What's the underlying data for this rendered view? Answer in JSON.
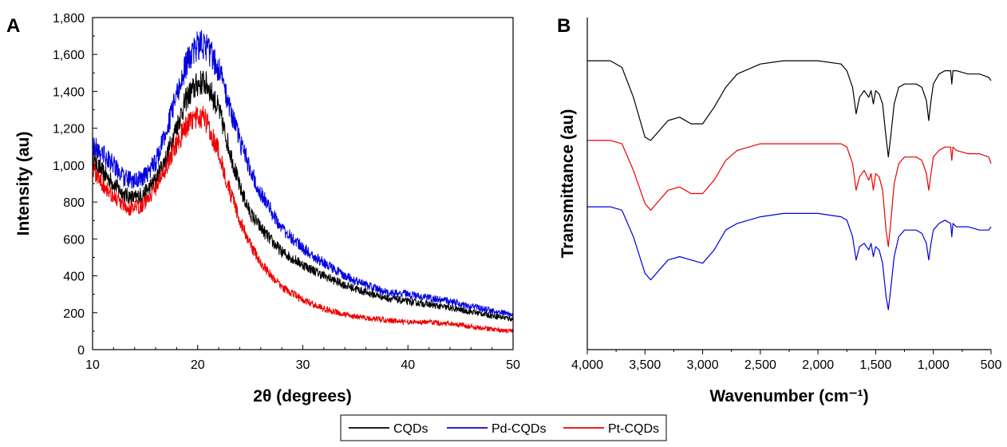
{
  "colors": {
    "CQDs": "#000000",
    "Pd-CQDs": "#0000dd",
    "Pt-CQDs": "#ee0000"
  },
  "legend": {
    "placement": "bottom-center",
    "entries": [
      "CQDs",
      "Pd-CQDs",
      "Pt-CQDs"
    ]
  },
  "chart_data": [
    {
      "panel_label": "A",
      "type": "line",
      "title": "",
      "xlabel": "2θ (degrees)",
      "ylabel": "Intensity (au)",
      "xlim": [
        10,
        50
      ],
      "ylim": [
        0,
        1800
      ],
      "x_ticks": [
        10,
        20,
        30,
        40,
        50
      ],
      "x_tick_labels": [
        "10",
        "20",
        "30",
        "40",
        "50"
      ],
      "y_ticks": [
        0,
        200,
        400,
        600,
        800,
        1000,
        1200,
        1400,
        1600,
        1800
      ],
      "y_tick_labels": [
        "0",
        "200",
        "400",
        "600",
        "800",
        "1,000",
        "1,200",
        "1,400",
        "1,600",
        "1,800"
      ],
      "grid": false,
      "series": [
        {
          "name": "CQDs",
          "x": [
            10,
            11,
            12,
            13,
            14,
            15,
            16,
            17,
            18,
            19,
            20,
            20.5,
            21,
            22,
            23,
            24,
            25,
            26,
            27,
            28,
            30,
            32,
            34,
            36,
            38,
            40,
            42,
            44,
            46,
            48,
            50
          ],
          "y": [
            1030,
            960,
            900,
            840,
            820,
            850,
            920,
            1040,
            1210,
            1370,
            1440,
            1450,
            1430,
            1300,
            1090,
            880,
            740,
            660,
            590,
            530,
            460,
            400,
            350,
            310,
            280,
            260,
            245,
            225,
            205,
            185,
            165
          ]
        },
        {
          "name": "Pd-CQDs",
          "x": [
            10,
            11,
            12,
            13,
            14,
            15,
            16,
            17,
            18,
            19,
            20,
            20.5,
            21,
            22,
            23,
            24,
            25,
            26,
            27,
            28,
            30,
            32,
            34,
            36,
            38,
            40,
            42,
            44,
            46,
            48,
            50
          ],
          "y": [
            1110,
            1060,
            1000,
            930,
            910,
            940,
            1020,
            1180,
            1380,
            1560,
            1650,
            1660,
            1630,
            1520,
            1330,
            1130,
            980,
            850,
            750,
            660,
            550,
            470,
            400,
            350,
            310,
            300,
            280,
            260,
            235,
            210,
            190
          ]
        },
        {
          "name": "Pt-CQDs",
          "x": [
            10,
            11,
            12,
            13,
            14,
            15,
            16,
            17,
            18,
            19,
            20,
            20.5,
            21,
            22,
            23,
            24,
            25,
            26,
            27,
            28,
            30,
            32,
            34,
            36,
            38,
            40,
            42,
            44,
            46,
            48,
            50
          ],
          "y": [
            980,
            900,
            830,
            770,
            760,
            800,
            880,
            990,
            1120,
            1220,
            1260,
            1260,
            1220,
            1070,
            870,
            700,
            570,
            470,
            400,
            340,
            270,
            220,
            190,
            170,
            160,
            150,
            148,
            140,
            125,
            110,
            100
          ]
        }
      ]
    },
    {
      "panel_label": "B",
      "type": "line",
      "title": "",
      "xlabel": "Wavenumber (cm⁻¹)",
      "ylabel": "Transmittance (au)",
      "xlim": [
        4000,
        500
      ],
      "ylim": [
        0,
        100
      ],
      "x_reversed": true,
      "x_ticks": [
        4000,
        3500,
        3000,
        2500,
        2000,
        1500,
        1000,
        500
      ],
      "x_tick_labels": [
        "4,000",
        "3,500",
        "3,000",
        "2,500",
        "2,000",
        "1,500",
        "1,000",
        "500"
      ],
      "y_tick_labels_shown": false,
      "grid": false,
      "series": [
        {
          "name": "CQDs",
          "x": [
            4000,
            3800,
            3700,
            3600,
            3500,
            3450,
            3400,
            3300,
            3200,
            3100,
            3000,
            2900,
            2800,
            2700,
            2500,
            2300,
            2000,
            1800,
            1750,
            1700,
            1670,
            1640,
            1600,
            1560,
            1540,
            1520,
            1500,
            1470,
            1440,
            1410,
            1390,
            1370,
            1340,
            1300,
            1250,
            1200,
            1150,
            1100,
            1060,
            1040,
            1020,
            1000,
            950,
            900,
            850,
            840,
            830,
            800,
            700,
            600,
            520,
            500
          ],
          "y": [
            87,
            87,
            85,
            76,
            64,
            63,
            65,
            69,
            70,
            68,
            68,
            73,
            79,
            83,
            86,
            87,
            87,
            86,
            84,
            79,
            71,
            76,
            78,
            76,
            78,
            74,
            78,
            77,
            74,
            64,
            58,
            64,
            74,
            79,
            80,
            80,
            80,
            79,
            75,
            69,
            75,
            80,
            83,
            84,
            84,
            80,
            84,
            84,
            83,
            83,
            82,
            81
          ]
        },
        {
          "name": "Pt-CQDs",
          "x": [
            4000,
            3800,
            3700,
            3600,
            3500,
            3450,
            3400,
            3300,
            3200,
            3100,
            3000,
            2900,
            2800,
            2700,
            2500,
            2300,
            2000,
            1800,
            1750,
            1700,
            1670,
            1640,
            1600,
            1560,
            1540,
            1520,
            1500,
            1470,
            1440,
            1410,
            1390,
            1370,
            1340,
            1300,
            1250,
            1200,
            1150,
            1100,
            1060,
            1040,
            1020,
            1000,
            950,
            900,
            850,
            840,
            830,
            800,
            700,
            600,
            520,
            500
          ],
          "y": [
            63,
            63,
            62,
            54,
            44,
            42,
            44,
            48,
            49,
            47,
            47,
            51,
            57,
            60,
            62,
            62,
            62,
            62,
            61,
            56,
            48,
            52,
            54,
            51,
            53,
            48,
            53,
            52,
            48,
            36,
            31,
            38,
            50,
            56,
            58,
            58,
            58,
            57,
            53,
            48,
            53,
            58,
            60,
            61,
            61,
            57,
            61,
            60,
            59,
            59,
            58,
            56
          ]
        },
        {
          "name": "Pd-CQDs",
          "x": [
            4000,
            3800,
            3700,
            3600,
            3500,
            3450,
            3400,
            3300,
            3200,
            3100,
            3000,
            2900,
            2800,
            2700,
            2500,
            2300,
            2000,
            1800,
            1750,
            1700,
            1670,
            1640,
            1600,
            1560,
            1540,
            1520,
            1500,
            1470,
            1440,
            1410,
            1390,
            1370,
            1340,
            1300,
            1250,
            1200,
            1150,
            1100,
            1060,
            1040,
            1020,
            1000,
            950,
            900,
            850,
            840,
            830,
            800,
            700,
            600,
            520,
            500
          ],
          "y": [
            43,
            43,
            42,
            34,
            23,
            21,
            23,
            27,
            28,
            27,
            26,
            30,
            36,
            38,
            40,
            41,
            41,
            40,
            39,
            34,
            27,
            31,
            32,
            30,
            32,
            28,
            31,
            30,
            26,
            16,
            12,
            18,
            28,
            34,
            36,
            36,
            36,
            35,
            32,
            27,
            32,
            36,
            38,
            39,
            38,
            34,
            38,
            37,
            37,
            36,
            36,
            37
          ]
        }
      ]
    }
  ]
}
